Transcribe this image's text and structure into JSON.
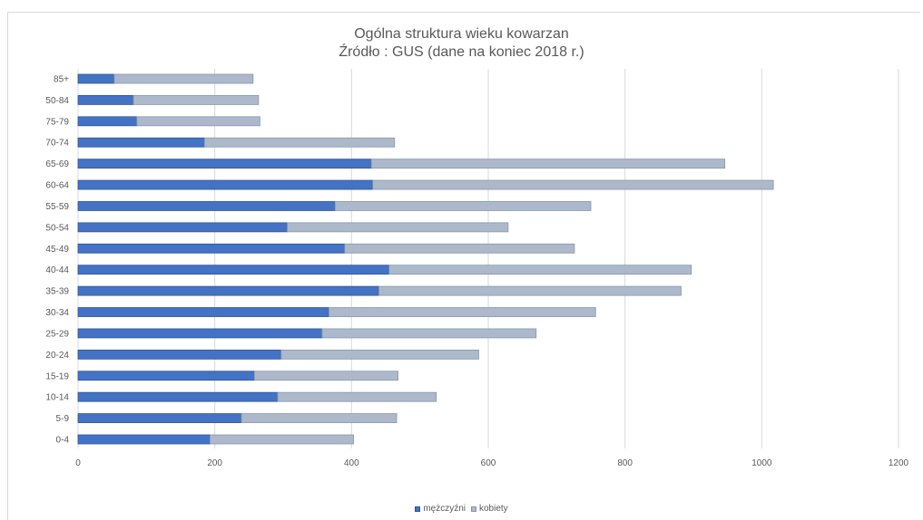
{
  "chart_data": {
    "type": "bar",
    "orientation": "horizontal",
    "stacked": true,
    "title": "Ogólna struktura wieku kowarzan",
    "subtitle": "Źródło : GUS (dane na koniec 2018 r.)",
    "categories": [
      "0-4",
      "5-9",
      "10-14",
      "15-19",
      "20-24",
      "25-29",
      "30-34",
      "35-39",
      "40-44",
      "45-49",
      "50-54",
      "55-59",
      "60-64",
      "65-69",
      "70-74",
      "75-79",
      "50-84",
      "85+"
    ],
    "series": [
      {
        "name": "mężczyźni",
        "color": "#4472c4",
        "values": [
          193,
          239,
          292,
          258,
          297,
          357,
          367,
          440,
          455,
          390,
          306,
          376,
          431,
          429,
          185,
          86,
          81,
          53
        ]
      },
      {
        "name": "kobiety",
        "color": "#adb9ca",
        "values": [
          210,
          227,
          232,
          210,
          289,
          313,
          390,
          442,
          442,
          336,
          323,
          374,
          586,
          517,
          278,
          180,
          183,
          203
        ]
      }
    ],
    "xlim": [
      0,
      1200
    ],
    "xticks": [
      0,
      200,
      400,
      600,
      800,
      1000,
      1200
    ],
    "grid": true,
    "legend_position": "bottom"
  }
}
